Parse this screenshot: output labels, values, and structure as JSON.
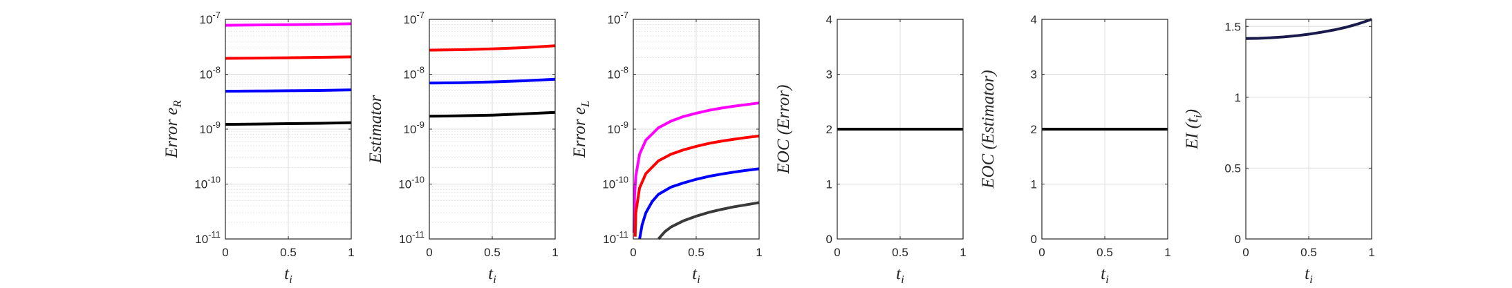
{
  "chart_data": [
    {
      "type": "line",
      "yscale": "log",
      "grid": "on",
      "title": "",
      "ylabel": "Error e_R",
      "xlabel": "t_i",
      "xlim": [
        0,
        1
      ],
      "ylim": [
        1e-11,
        1e-07
      ],
      "xticks": [
        0,
        0.5,
        1
      ],
      "xticklabels": [
        "0",
        "0.5",
        "1"
      ],
      "yticks": [
        1e-11,
        1e-10,
        1e-09,
        1e-08,
        1e-07
      ],
      "yticklabels": [
        "10-11",
        "10-10",
        "10-9",
        "10-8",
        "10-7"
      ],
      "series": [
        {
          "color": "#ff00ff",
          "x": [
            0,
            0.25,
            0.5,
            0.75,
            1
          ],
          "y": [
            7.8e-08,
            7.9e-08,
            8e-08,
            8.1e-08,
            8.3e-08
          ]
        },
        {
          "color": "#ff0000",
          "x": [
            0,
            0.25,
            0.5,
            0.75,
            1
          ],
          "y": [
            1.95e-08,
            1.97e-08,
            2e-08,
            2.03e-08,
            2.07e-08
          ]
        },
        {
          "color": "#0000ff",
          "x": [
            0,
            0.25,
            0.5,
            0.75,
            1
          ],
          "y": [
            4.9e-09,
            4.95e-09,
            5e-09,
            5.07e-09,
            5.2e-09
          ]
        },
        {
          "color": "#000000",
          "x": [
            0,
            0.25,
            0.5,
            0.75,
            1
          ],
          "y": [
            1.22e-09,
            1.24e-09,
            1.26e-09,
            1.28e-09,
            1.31e-09
          ]
        }
      ]
    },
    {
      "type": "line",
      "yscale": "log",
      "grid": "on",
      "title": "",
      "ylabel": "Estimator",
      "xlabel": "t_i",
      "xlim": [
        0,
        1
      ],
      "ylim": [
        1e-11,
        1e-07
      ],
      "xticks": [
        0,
        0.5,
        1
      ],
      "xticklabels": [
        "0",
        "0.5",
        "1"
      ],
      "yticks": [
        1e-11,
        1e-10,
        1e-09,
        1e-08,
        1e-07
      ],
      "yticklabels": [
        "10-11",
        "10-10",
        "10-9",
        "10-8",
        "10-7"
      ],
      "series": [
        {
          "color": "#ff0000",
          "x": [
            0,
            0.25,
            0.5,
            0.75,
            1
          ],
          "y": [
            2.75e-08,
            2.8e-08,
            2.9e-08,
            3.05e-08,
            3.3e-08
          ]
        },
        {
          "color": "#0000ff",
          "x": [
            0,
            0.25,
            0.5,
            0.75,
            1
          ],
          "y": [
            6.9e-09,
            7e-09,
            7.25e-09,
            7.6e-09,
            8.1e-09
          ]
        },
        {
          "color": "#000000",
          "x": [
            0,
            0.25,
            0.5,
            0.75,
            1
          ],
          "y": [
            1.72e-09,
            1.75e-09,
            1.8e-09,
            1.9e-09,
            2.02e-09
          ]
        }
      ]
    },
    {
      "type": "line",
      "yscale": "log",
      "grid": "on",
      "title": "",
      "ylabel": "Error e_L",
      "xlabel": "t_i",
      "xlim": [
        0,
        1
      ],
      "ylim": [
        1e-11,
        1e-07
      ],
      "xticks": [
        0,
        0.5,
        1
      ],
      "xticklabels": [
        "0",
        "0.5",
        "1"
      ],
      "yticks": [
        1e-11,
        1e-10,
        1e-09,
        1e-08,
        1e-07
      ],
      "yticklabels": [
        "10-11",
        "10-10",
        "10-9",
        "10-8",
        "10-7"
      ],
      "series": [
        {
          "color": "#ff00ff",
          "x": [
            0.005,
            0.01,
            0.02,
            0.05,
            0.1,
            0.2,
            0.3,
            0.4,
            0.5,
            0.6,
            0.7,
            0.8,
            0.9,
            1
          ],
          "y": [
            1.3e-11,
            6e-11,
            1.4e-10,
            3.5e-10,
            6.3e-10,
            1.06e-09,
            1.4e-09,
            1.7e-09,
            1.95e-09,
            2.2e-09,
            2.42e-09,
            2.62e-09,
            2.8e-09,
            3e-09
          ]
        },
        {
          "color": "#ff0000",
          "x": [
            0.015,
            0.02,
            0.05,
            0.1,
            0.2,
            0.3,
            0.4,
            0.5,
            0.6,
            0.7,
            0.8,
            0.9,
            1
          ],
          "y": [
            1.1e-11,
            3e-11,
            8.5e-11,
            1.55e-10,
            2.65e-10,
            3.5e-10,
            4.2e-10,
            4.85e-10,
            5.5e-10,
            6.05e-10,
            6.55e-10,
            7.05e-10,
            7.5e-10
          ]
        },
        {
          "color": "#0000ff",
          "x": [
            0.05,
            0.07,
            0.1,
            0.15,
            0.2,
            0.3,
            0.4,
            0.5,
            0.6,
            0.7,
            0.8,
            0.9,
            1
          ],
          "y": [
            1e-11,
            1.8e-11,
            3e-11,
            4.8e-11,
            6.5e-11,
            8.8e-11,
            1.05e-10,
            1.22e-10,
            1.38e-10,
            1.52e-10,
            1.65e-10,
            1.78e-10,
            1.9e-10
          ]
        },
        {
          "color": "#3a3a3a",
          "x": [
            0.2,
            0.25,
            0.3,
            0.4,
            0.5,
            0.6,
            0.7,
            0.8,
            0.9,
            1
          ],
          "y": [
            1e-11,
            1.35e-11,
            1.65e-11,
            2.15e-11,
            2.6e-11,
            3.05e-11,
            3.45e-11,
            3.85e-11,
            4.2e-11,
            4.6e-11
          ]
        }
      ]
    },
    {
      "type": "line",
      "yscale": "linear",
      "grid": "on",
      "title": "",
      "ylabel": "EOC (Error)",
      "xlabel": "t_i",
      "xlim": [
        0,
        1
      ],
      "ylim": [
        0,
        4
      ],
      "xticks": [
        0,
        0.5,
        1
      ],
      "xticklabels": [
        "0",
        "0.5",
        "1"
      ],
      "yticks": [
        0,
        1,
        2,
        3,
        4
      ],
      "yticklabels": [
        "0",
        "1",
        "2",
        "3",
        "4"
      ],
      "series": [
        {
          "color": "#000000",
          "x": [
            0,
            1
          ],
          "y": [
            2,
            2
          ]
        }
      ]
    },
    {
      "type": "line",
      "yscale": "linear",
      "grid": "on",
      "title": "",
      "ylabel": "EOC (Estimator)",
      "xlabel": "t_i",
      "xlim": [
        0,
        1
      ],
      "ylim": [
        0,
        4
      ],
      "xticks": [
        0,
        0.5,
        1
      ],
      "xticklabels": [
        "0",
        "0.5",
        "1"
      ],
      "yticks": [
        0,
        1,
        2,
        3,
        4
      ],
      "yticklabels": [
        "0",
        "1",
        "2",
        "3",
        "4"
      ],
      "series": [
        {
          "color": "#000000",
          "x": [
            0,
            1
          ],
          "y": [
            2,
            2
          ]
        }
      ]
    },
    {
      "type": "line",
      "yscale": "linear",
      "grid": "on",
      "title": "",
      "ylabel": "EI (t_i)",
      "xlabel": "t_i",
      "xlim": [
        0,
        1
      ],
      "ylim": [
        0,
        1.55
      ],
      "xticks": [
        0,
        0.5,
        1
      ],
      "xticklabels": [
        "0",
        "0.5",
        "1"
      ],
      "yticks": [
        0,
        0.5,
        1,
        1.5
      ],
      "yticklabels": [
        "0",
        "0.5",
        "1",
        "1.5"
      ],
      "series": [
        {
          "color": "#1a1a4d",
          "x": [
            0,
            0.1,
            0.2,
            0.3,
            0.4,
            0.5,
            0.6,
            0.7,
            0.8,
            0.9,
            1
          ],
          "y": [
            1.415,
            1.416,
            1.42,
            1.426,
            1.434,
            1.445,
            1.459,
            1.475,
            1.495,
            1.52,
            1.55
          ]
        }
      ]
    }
  ]
}
